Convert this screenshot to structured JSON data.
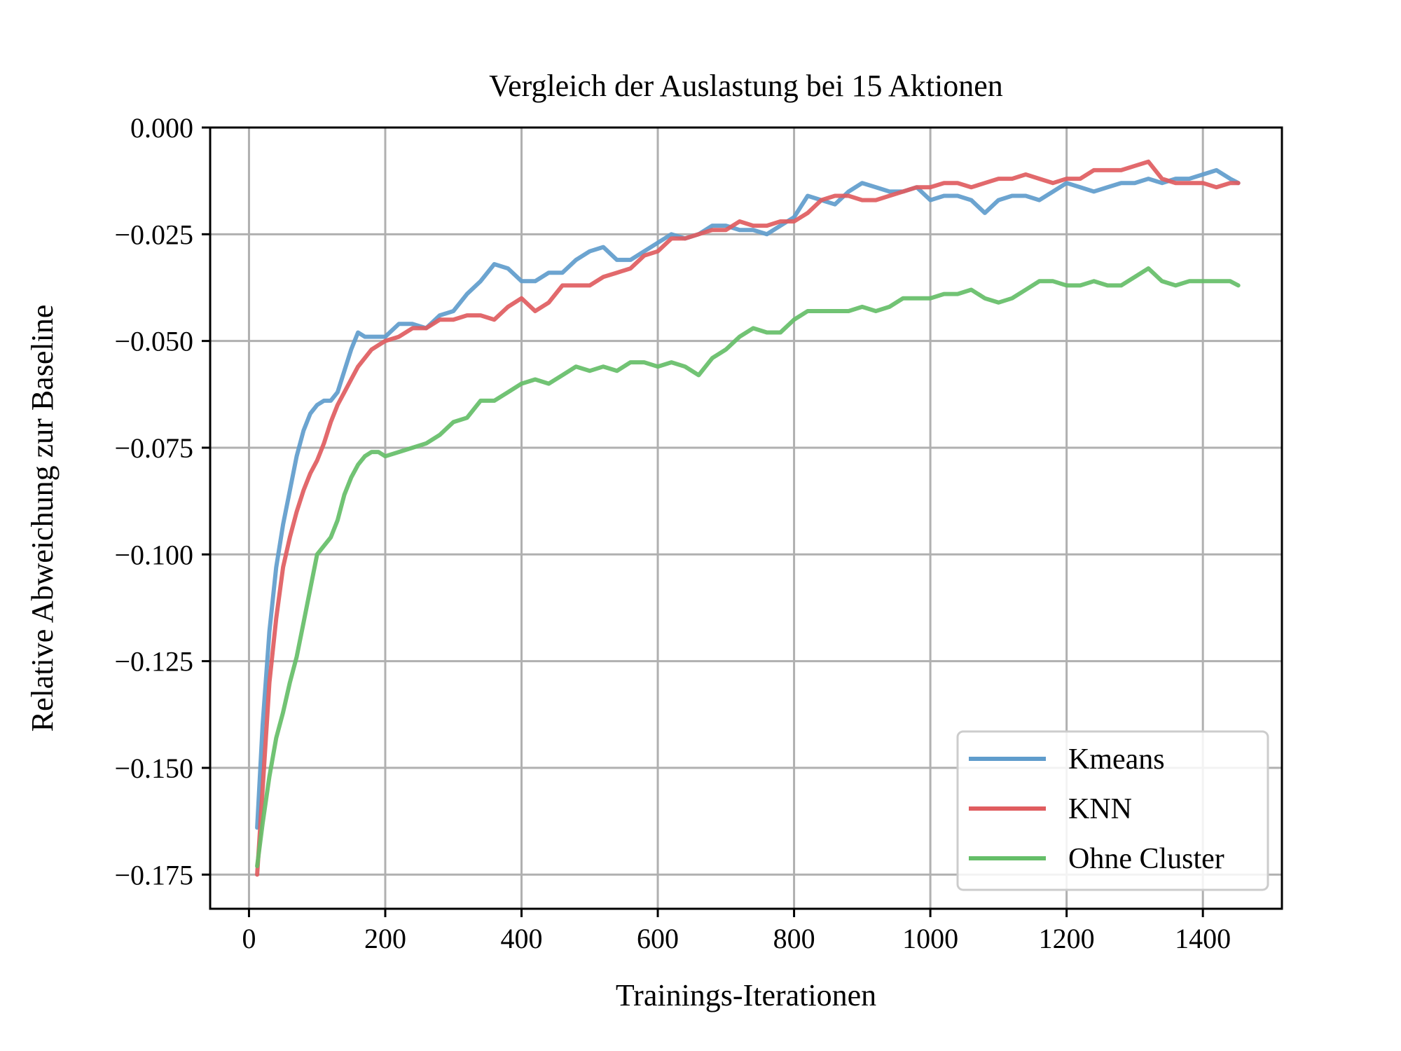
{
  "chart_data": {
    "type": "line",
    "title": "Vergleich der Auslastung bei 15 Aktionen",
    "xlabel": "Trainings-Iterationen",
    "ylabel": "Relative Abweichung zur Baseline",
    "xlim": [
      -57,
      1516
    ],
    "ylim": [
      -0.183,
      0.0
    ],
    "xticks": [
      0,
      200,
      400,
      600,
      800,
      1000,
      1200,
      1400
    ],
    "yticks": [
      0.0,
      -0.025,
      -0.05,
      -0.075,
      -0.1,
      -0.125,
      -0.15,
      -0.175
    ],
    "xtick_labels": [
      "0",
      "200",
      "400",
      "600",
      "800",
      "1000",
      "1200",
      "1400"
    ],
    "ytick_labels": [
      "0.000",
      "−0.025",
      "−0.050",
      "−0.075",
      "−0.100",
      "−0.125",
      "−0.150",
      "−0.175"
    ],
    "grid": true,
    "legend_position": "lower right",
    "series": [
      {
        "name": "Kmeans",
        "color": "#5f9ccc",
        "x": [
          12,
          20,
          30,
          40,
          50,
          60,
          70,
          80,
          90,
          100,
          110,
          120,
          130,
          140,
          150,
          160,
          170,
          180,
          190,
          200,
          220,
          240,
          260,
          280,
          300,
          320,
          340,
          360,
          380,
          400,
          420,
          440,
          460,
          480,
          500,
          520,
          540,
          560,
          580,
          600,
          620,
          640,
          660,
          680,
          700,
          720,
          740,
          760,
          780,
          800,
          820,
          840,
          860,
          880,
          900,
          920,
          940,
          960,
          980,
          1000,
          1020,
          1040,
          1060,
          1080,
          1100,
          1120,
          1140,
          1160,
          1180,
          1200,
          1220,
          1240,
          1260,
          1280,
          1300,
          1320,
          1340,
          1360,
          1380,
          1400,
          1420,
          1440,
          1452
        ],
        "y": [
          -0.164,
          -0.14,
          -0.118,
          -0.103,
          -0.093,
          -0.085,
          -0.077,
          -0.071,
          -0.067,
          -0.065,
          -0.064,
          -0.064,
          -0.062,
          -0.057,
          -0.052,
          -0.048,
          -0.049,
          -0.049,
          -0.049,
          -0.049,
          -0.046,
          -0.046,
          -0.047,
          -0.044,
          -0.043,
          -0.039,
          -0.036,
          -0.032,
          -0.033,
          -0.036,
          -0.036,
          -0.034,
          -0.034,
          -0.031,
          -0.029,
          -0.028,
          -0.031,
          -0.031,
          -0.029,
          -0.027,
          -0.025,
          -0.026,
          -0.025,
          -0.023,
          -0.023,
          -0.024,
          -0.024,
          -0.025,
          -0.023,
          -0.021,
          -0.016,
          -0.017,
          -0.018,
          -0.015,
          -0.013,
          -0.014,
          -0.015,
          -0.015,
          -0.014,
          -0.017,
          -0.016,
          -0.016,
          -0.017,
          -0.02,
          -0.017,
          -0.016,
          -0.016,
          -0.017,
          -0.015,
          -0.013,
          -0.014,
          -0.015,
          -0.014,
          -0.013,
          -0.013,
          -0.012,
          -0.013,
          -0.012,
          -0.012,
          -0.011,
          -0.01,
          -0.012,
          -0.013
        ]
      },
      {
        "name": "KNN",
        "color": "#e05c5f",
        "x": [
          12,
          20,
          30,
          40,
          50,
          60,
          70,
          80,
          90,
          100,
          110,
          120,
          130,
          140,
          150,
          160,
          170,
          180,
          190,
          200,
          220,
          240,
          260,
          280,
          300,
          320,
          340,
          360,
          380,
          400,
          420,
          440,
          460,
          480,
          500,
          520,
          540,
          560,
          580,
          600,
          620,
          640,
          660,
          680,
          700,
          720,
          740,
          760,
          780,
          800,
          820,
          840,
          860,
          880,
          900,
          920,
          940,
          960,
          980,
          1000,
          1020,
          1040,
          1060,
          1080,
          1100,
          1120,
          1140,
          1160,
          1180,
          1200,
          1220,
          1240,
          1260,
          1280,
          1300,
          1320,
          1340,
          1360,
          1380,
          1400,
          1420,
          1440,
          1452
        ],
        "y": [
          -0.175,
          -0.155,
          -0.13,
          -0.115,
          -0.103,
          -0.096,
          -0.09,
          -0.085,
          -0.081,
          -0.078,
          -0.074,
          -0.069,
          -0.065,
          -0.062,
          -0.059,
          -0.056,
          -0.054,
          -0.052,
          -0.051,
          -0.05,
          -0.049,
          -0.047,
          -0.047,
          -0.045,
          -0.045,
          -0.044,
          -0.044,
          -0.045,
          -0.042,
          -0.04,
          -0.043,
          -0.041,
          -0.037,
          -0.037,
          -0.037,
          -0.035,
          -0.034,
          -0.033,
          -0.03,
          -0.029,
          -0.026,
          -0.026,
          -0.025,
          -0.024,
          -0.024,
          -0.022,
          -0.023,
          -0.023,
          -0.022,
          -0.022,
          -0.02,
          -0.017,
          -0.016,
          -0.016,
          -0.017,
          -0.017,
          -0.016,
          -0.015,
          -0.014,
          -0.014,
          -0.013,
          -0.013,
          -0.014,
          -0.013,
          -0.012,
          -0.012,
          -0.011,
          -0.012,
          -0.013,
          -0.012,
          -0.012,
          -0.01,
          -0.01,
          -0.01,
          -0.009,
          -0.008,
          -0.012,
          -0.013,
          -0.013,
          -0.013,
          -0.014,
          -0.013,
          -0.013
        ]
      },
      {
        "name": "Ohne Cluster",
        "color": "#65be68",
        "x": [
          12,
          20,
          30,
          40,
          50,
          60,
          70,
          80,
          90,
          100,
          110,
          120,
          130,
          140,
          150,
          160,
          170,
          180,
          190,
          200,
          220,
          240,
          260,
          280,
          300,
          320,
          340,
          360,
          380,
          400,
          420,
          440,
          460,
          480,
          500,
          520,
          540,
          560,
          580,
          600,
          620,
          640,
          660,
          680,
          700,
          720,
          740,
          760,
          780,
          800,
          820,
          840,
          860,
          880,
          900,
          920,
          940,
          960,
          980,
          1000,
          1020,
          1040,
          1060,
          1080,
          1100,
          1120,
          1140,
          1160,
          1180,
          1200,
          1220,
          1240,
          1260,
          1280,
          1300,
          1320,
          1340,
          1360,
          1380,
          1400,
          1420,
          1440,
          1452
        ],
        "y": [
          -0.173,
          -0.163,
          -0.152,
          -0.143,
          -0.137,
          -0.13,
          -0.124,
          -0.116,
          -0.108,
          -0.1,
          -0.098,
          -0.096,
          -0.092,
          -0.086,
          -0.082,
          -0.079,
          -0.077,
          -0.076,
          -0.076,
          -0.077,
          -0.076,
          -0.075,
          -0.074,
          -0.072,
          -0.069,
          -0.068,
          -0.064,
          -0.064,
          -0.062,
          -0.06,
          -0.059,
          -0.06,
          -0.058,
          -0.056,
          -0.057,
          -0.056,
          -0.057,
          -0.055,
          -0.055,
          -0.056,
          -0.055,
          -0.056,
          -0.058,
          -0.054,
          -0.052,
          -0.049,
          -0.047,
          -0.048,
          -0.048,
          -0.045,
          -0.043,
          -0.043,
          -0.043,
          -0.043,
          -0.042,
          -0.043,
          -0.042,
          -0.04,
          -0.04,
          -0.04,
          -0.039,
          -0.039,
          -0.038,
          -0.04,
          -0.041,
          -0.04,
          -0.038,
          -0.036,
          -0.036,
          -0.037,
          -0.037,
          -0.036,
          -0.037,
          -0.037,
          -0.035,
          -0.033,
          -0.036,
          -0.037,
          -0.036,
          -0.036,
          -0.036,
          -0.036,
          -0.037
        ]
      }
    ]
  }
}
